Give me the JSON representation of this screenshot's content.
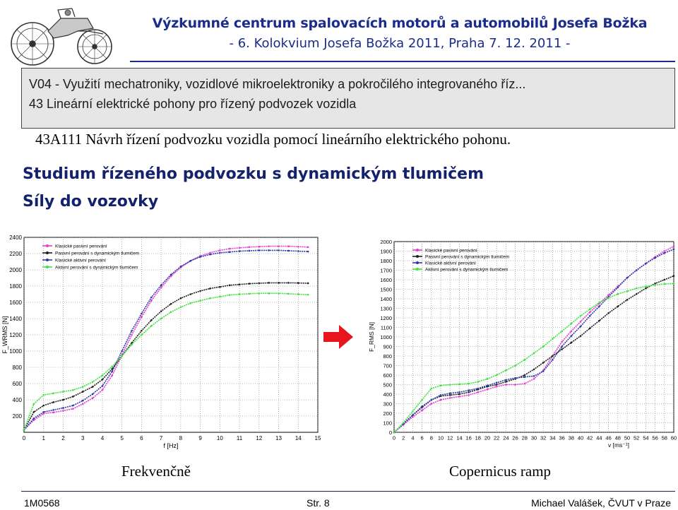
{
  "header": {
    "institution": "Výzkumné centrum spalovacích motorů a automobilů Josefa Božka",
    "event": "- 6. Kolokvium Josefa Božka 2011, Praha 7. 12. 2011 -"
  },
  "box": {
    "line1": "V04 - Využití mechatroniky, vozidlové mikroelektroniky a pokročilého integrovaného říz...",
    "line2": "43 Lineární elektrické pohony pro řízený podvozek vozidla"
  },
  "topic": "43A111 Návrh řízení podvozku vozidla pomocí lineárního elektrického pohonu.",
  "heading1": "Studium řízeného podvozku s dynamickým tlumičem",
  "heading2": "Síly do vozovky",
  "captions": {
    "left": "Frekvenčně",
    "right": "Copernicus ramp"
  },
  "footer": {
    "left": "1M0568",
    "center": "Str. 8",
    "right": "Michael Valášek, ČVUT v Praze"
  },
  "colors": {
    "accent": "#1a2c8c",
    "arrow": "#e8161c",
    "s1": "#e23dd0",
    "s2": "#1f1f1f",
    "s3": "#2d3aa6",
    "s4": "#3fe23f"
  },
  "chart_data": [
    {
      "type": "line",
      "xlabel": "f [Hz]",
      "ylabel": "F_WRMS [N]",
      "xlim": [
        0,
        15
      ],
      "ylim": [
        0,
        2400
      ],
      "xticks": [
        0,
        1,
        2,
        3,
        4,
        5,
        6,
        7,
        8,
        9,
        10,
        11,
        12,
        13,
        14,
        15
      ],
      "yticks": [
        200,
        400,
        600,
        800,
        1000,
        1200,
        1400,
        1600,
        1800,
        2000,
        2200,
        2400
      ],
      "grid": true,
      "legend": "top-left",
      "x": [
        0,
        0.5,
        1,
        1.5,
        2,
        2.5,
        3,
        3.5,
        4,
        4.5,
        5,
        5.5,
        6,
        6.5,
        7,
        7.5,
        8,
        8.5,
        9,
        9.5,
        10,
        10.5,
        11,
        11.5,
        12,
        12.5,
        13,
        13.5,
        14,
        14.5
      ],
      "series": [
        {
          "name": "Klasické pasivní perování",
          "color": "#e23dd0",
          "values": [
            30,
            150,
            230,
            245,
            265,
            290,
            350,
            420,
            520,
            700,
            950,
            1200,
            1420,
            1620,
            1780,
            1920,
            2030,
            2110,
            2170,
            2210,
            2240,
            2260,
            2270,
            2280,
            2285,
            2290,
            2290,
            2290,
            2285,
            2280
          ]
        },
        {
          "name": "Pasivní perování s dynamickým tlumičem",
          "color": "#1f1f1f",
          "values": [
            30,
            250,
            330,
            370,
            400,
            440,
            500,
            560,
            650,
            780,
            940,
            1100,
            1250,
            1380,
            1490,
            1580,
            1650,
            1700,
            1740,
            1770,
            1790,
            1810,
            1820,
            1830,
            1835,
            1840,
            1840,
            1840,
            1838,
            1835
          ]
        },
        {
          "name": "Klasické aktivní perování",
          "color": "#2d3aa6",
          "values": [
            30,
            170,
            250,
            275,
            300,
            330,
            390,
            470,
            570,
            750,
            1000,
            1250,
            1460,
            1660,
            1810,
            1940,
            2040,
            2110,
            2160,
            2190,
            2210,
            2220,
            2230,
            2235,
            2240,
            2240,
            2240,
            2235,
            2230,
            2225
          ]
        },
        {
          "name": "Aktivní perování s dynamickým tlumičem",
          "color": "#3fe23f",
          "values": [
            30,
            350,
            460,
            480,
            500,
            520,
            560,
            620,
            700,
            810,
            940,
            1080,
            1200,
            1310,
            1400,
            1480,
            1540,
            1590,
            1620,
            1650,
            1670,
            1690,
            1700,
            1705,
            1710,
            1710,
            1710,
            1705,
            1700,
            1695
          ]
        }
      ]
    },
    {
      "type": "line",
      "xlabel": "v [ms⁻¹]",
      "ylabel": "F_RMS [N]",
      "xlim": [
        0,
        60
      ],
      "ylim": [
        0,
        2000
      ],
      "xticks": [
        0,
        2,
        4,
        6,
        8,
        10,
        12,
        14,
        16,
        18,
        20,
        22,
        24,
        26,
        28,
        30,
        32,
        34,
        36,
        38,
        40,
        42,
        44,
        46,
        48,
        50,
        52,
        54,
        56,
        58,
        60
      ],
      "yticks": [
        0,
        100,
        200,
        300,
        400,
        500,
        600,
        700,
        800,
        900,
        1000,
        1100,
        1200,
        1300,
        1400,
        1500,
        1600,
        1700,
        1800,
        1900,
        2000
      ],
      "grid": true,
      "legend": "top-left",
      "x": [
        0,
        2,
        4,
        6,
        8,
        10,
        12,
        14,
        16,
        18,
        20,
        22,
        24,
        26,
        28,
        30,
        32,
        34,
        36,
        38,
        40,
        42,
        44,
        46,
        48,
        50,
        52,
        54,
        56,
        58,
        60
      ],
      "series": [
        {
          "name": "Klasické pasivní perování",
          "color": "#e23dd0",
          "values": [
            0,
            80,
            160,
            230,
            300,
            340,
            360,
            375,
            390,
            420,
            450,
            480,
            500,
            500,
            510,
            560,
            650,
            800,
            950,
            1060,
            1160,
            1260,
            1350,
            1440,
            1530,
            1620,
            1700,
            1770,
            1840,
            1900,
            1950
          ]
        },
        {
          "name": "Pasivní perování s dynamickým tlumičem",
          "color": "#1f1f1f",
          "values": [
            0,
            90,
            180,
            270,
            340,
            380,
            390,
            400,
            420,
            450,
            480,
            500,
            530,
            560,
            600,
            660,
            730,
            800,
            870,
            940,
            1010,
            1090,
            1170,
            1250,
            1320,
            1390,
            1450,
            1510,
            1560,
            1600,
            1640
          ]
        },
        {
          "name": "Klasické aktivní perování",
          "color": "#2d3aa6",
          "values": [
            0,
            90,
            180,
            260,
            340,
            390,
            410,
            420,
            440,
            460,
            490,
            520,
            550,
            570,
            580,
            590,
            640,
            760,
            900,
            1010,
            1110,
            1220,
            1320,
            1420,
            1520,
            1620,
            1700,
            1770,
            1830,
            1880,
            1920
          ]
        },
        {
          "name": "Aktivní perování s dynamickým tlumičem",
          "color": "#3fe23f",
          "values": [
            0,
            100,
            220,
            340,
            460,
            490,
            500,
            505,
            510,
            530,
            560,
            600,
            650,
            700,
            760,
            830,
            900,
            980,
            1060,
            1140,
            1220,
            1290,
            1360,
            1410,
            1450,
            1480,
            1510,
            1530,
            1545,
            1555,
            1560
          ]
        }
      ]
    }
  ]
}
